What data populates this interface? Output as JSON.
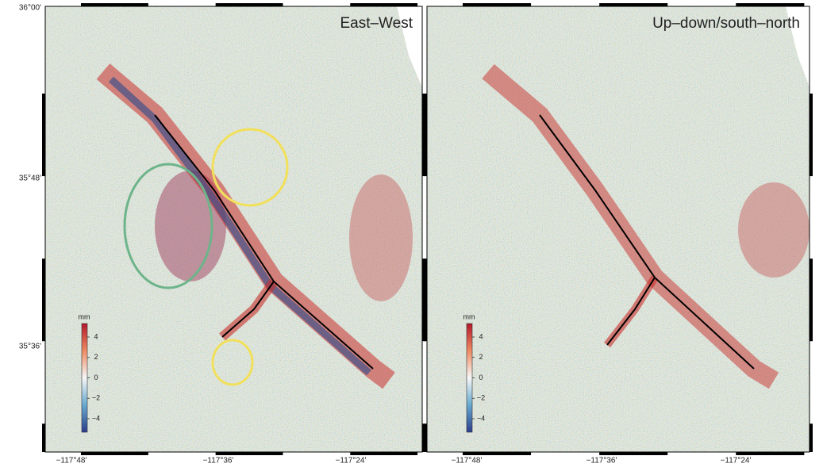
{
  "panels": [
    {
      "title": "East–West",
      "colorbar": {
        "unit": "mm",
        "ticks": [
          "4",
          "2",
          "0",
          "−2",
          "−4"
        ]
      },
      "lon_labels": [
        "−117°48'",
        "−117°36'",
        "−117°24'"
      ]
    },
    {
      "title": "Up–down/south–north",
      "colorbar": {
        "unit": "mm",
        "ticks": [
          "4",
          "2",
          "0",
          "−2",
          "−4"
        ]
      },
      "lon_labels": [
        "−117°48'",
        "−117°36'",
        "−117°24'"
      ]
    }
  ],
  "lat_labels": [
    "36°00'",
    "35°48'",
    "35°36'"
  ]
}
